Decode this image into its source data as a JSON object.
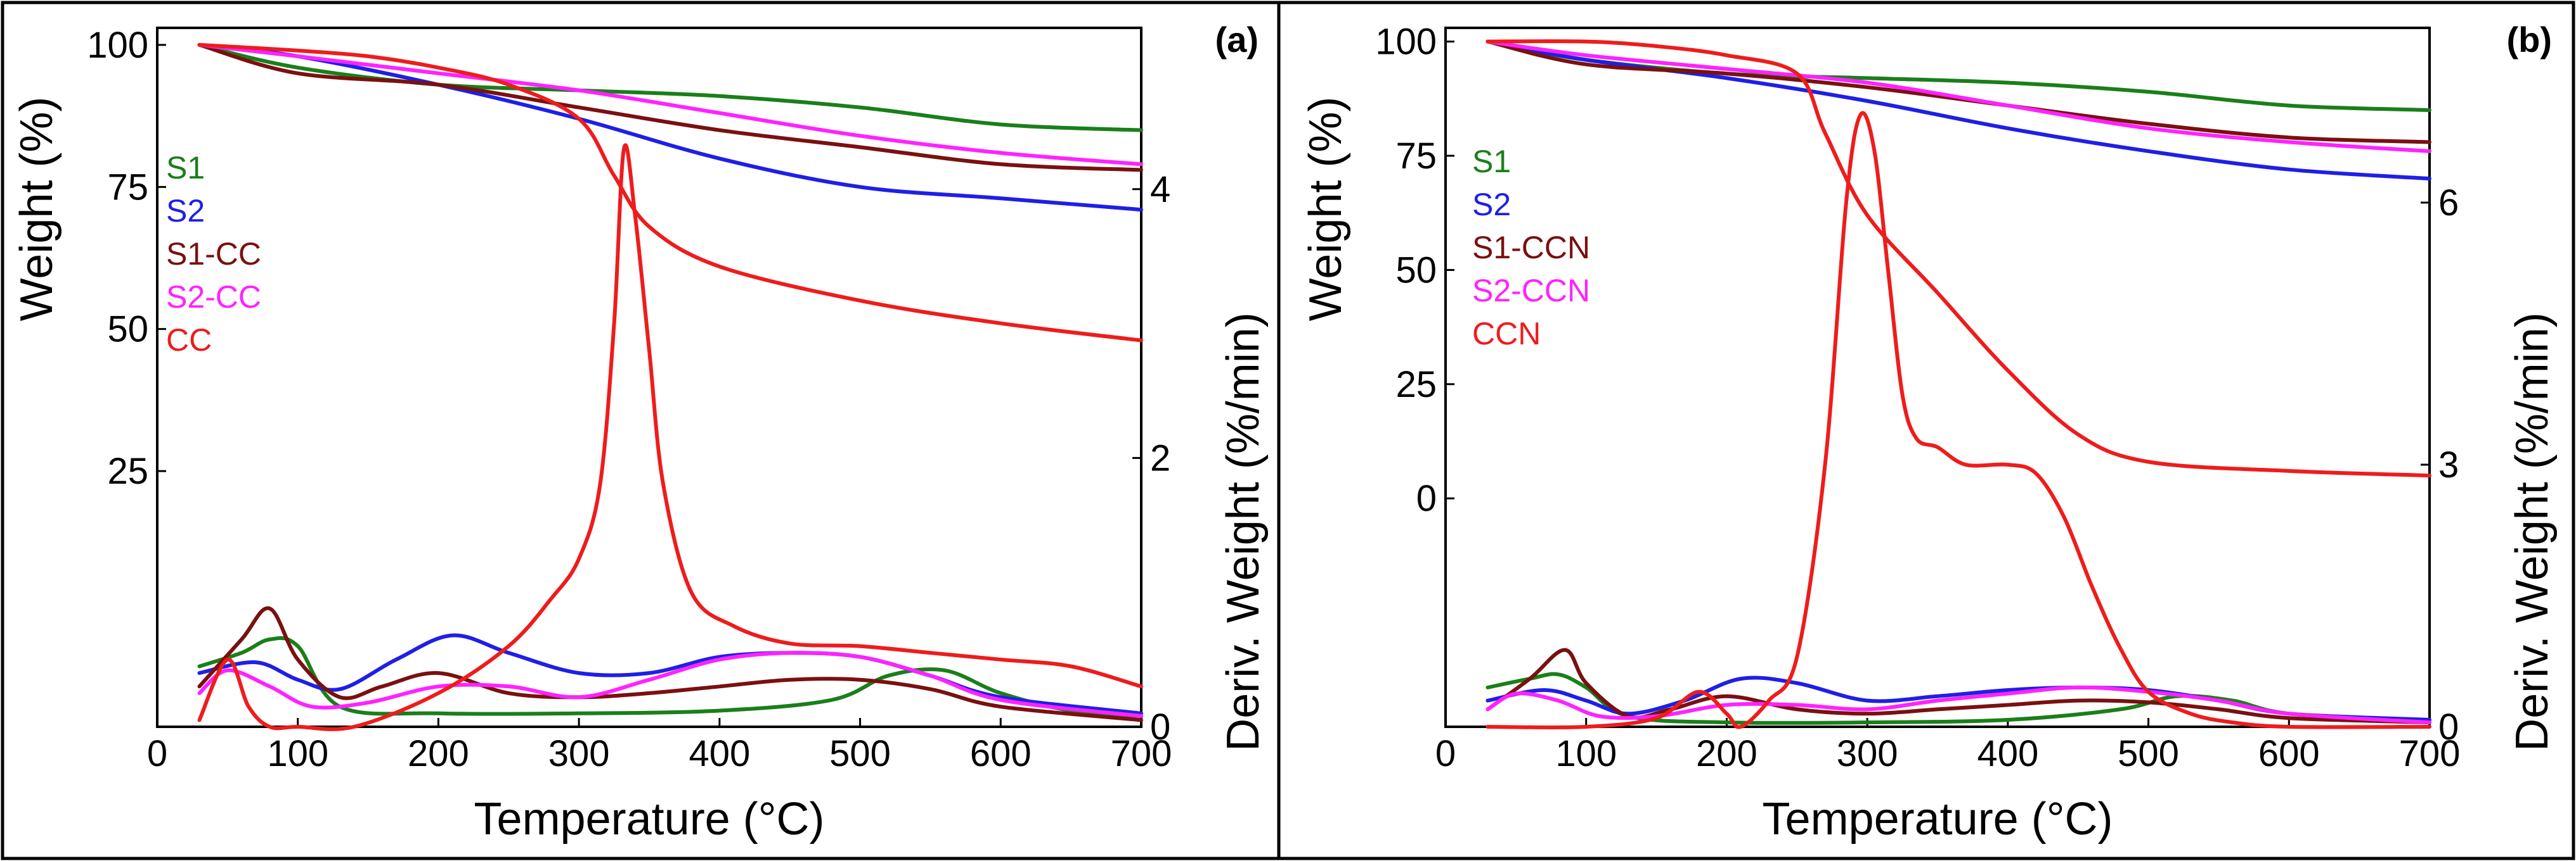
{
  "chart_data": [
    {
      "type": "line",
      "panel_label": "(a)",
      "xlabel": "Temperature (°C)",
      "ylabel_left": "Weight (%)",
      "ylabel_right": "Deriv. Weight (%/min)",
      "xlim": [
        0,
        700
      ],
      "xticks": [
        "0",
        "100",
        "200",
        "300",
        "400",
        "500",
        "600",
        "700"
      ],
      "xtick_values": [
        0,
        100,
        200,
        300,
        400,
        500,
        600,
        700
      ],
      "weight_ylim": [
        -20,
        103
      ],
      "weight_ticks": [
        "25",
        "50",
        "75",
        "100"
      ],
      "weight_tick_values": [
        25,
        50,
        75,
        100
      ],
      "deriv_ylim": [
        0,
        5.2
      ],
      "deriv_ticks": [
        "0",
        "2",
        "4"
      ],
      "deriv_tick_values": [
        0,
        2,
        4
      ],
      "legend": [
        "S1",
        "S2",
        "S1-CC",
        "S2-CC",
        "CC"
      ],
      "series": [
        {
          "name": "S1",
          "color": "#1a7f1a",
          "axis": "weight",
          "x": [
            30,
            100,
            200,
            300,
            400,
            500,
            600,
            700
          ],
          "y": [
            100,
            96,
            93,
            92,
            91,
            89,
            86,
            85
          ]
        },
        {
          "name": "S2",
          "color": "#1f1fe6",
          "axis": "weight",
          "x": [
            30,
            100,
            200,
            300,
            400,
            500,
            600,
            700
          ],
          "y": [
            100,
            98,
            93,
            87,
            80,
            75,
            73,
            71
          ]
        },
        {
          "name": "S1-CC",
          "color": "#7a1010",
          "axis": "weight",
          "x": [
            30,
            100,
            200,
            300,
            400,
            500,
            600,
            700
          ],
          "y": [
            100,
            95,
            93,
            89,
            85,
            82,
            79,
            78
          ]
        },
        {
          "name": "S2-CC",
          "color": "#ff22ff",
          "axis": "weight",
          "x": [
            30,
            100,
            200,
            300,
            400,
            500,
            600,
            700
          ],
          "y": [
            100,
            98,
            95,
            92,
            88,
            84,
            81,
            79
          ]
        },
        {
          "name": "CC",
          "color": "#ee1c1c",
          "axis": "weight",
          "x": [
            30,
            100,
            150,
            200,
            250,
            300,
            325,
            350,
            400,
            500,
            600,
            700
          ],
          "y": [
            100,
            99,
            98,
            96,
            93,
            87,
            77,
            68,
            61,
            55,
            51,
            48
          ]
        },
        {
          "name": "S1",
          "color": "#1a7f1a",
          "axis": "deriv",
          "x": [
            30,
            60,
            80,
            100,
            130,
            200,
            300,
            400,
            480,
            520,
            560,
            600,
            650,
            700
          ],
          "y": [
            0.45,
            0.55,
            0.65,
            0.6,
            0.15,
            0.1,
            0.1,
            0.12,
            0.2,
            0.38,
            0.42,
            0.25,
            0.12,
            0.08
          ]
        },
        {
          "name": "S2",
          "color": "#1f1fe6",
          "axis": "deriv",
          "x": [
            30,
            70,
            100,
            130,
            170,
            210,
            250,
            300,
            350,
            400,
            450,
            500,
            550,
            600,
            700
          ],
          "y": [
            0.4,
            0.48,
            0.35,
            0.28,
            0.5,
            0.68,
            0.55,
            0.4,
            0.4,
            0.52,
            0.55,
            0.52,
            0.38,
            0.22,
            0.1
          ]
        },
        {
          "name": "S1-CC",
          "color": "#7a1010",
          "axis": "deriv",
          "x": [
            30,
            60,
            80,
            100,
            130,
            160,
            200,
            250,
            300,
            350,
            400,
            450,
            500,
            550,
            600,
            700
          ],
          "y": [
            0.3,
            0.65,
            0.88,
            0.5,
            0.22,
            0.3,
            0.4,
            0.25,
            0.22,
            0.25,
            0.3,
            0.35,
            0.35,
            0.28,
            0.15,
            0.05
          ]
        },
        {
          "name": "S2-CC",
          "color": "#ff22ff",
          "axis": "deriv",
          "x": [
            30,
            50,
            80,
            110,
            150,
            200,
            250,
            300,
            350,
            400,
            450,
            500,
            550,
            600,
            700
          ],
          "y": [
            0.25,
            0.42,
            0.3,
            0.15,
            0.18,
            0.3,
            0.3,
            0.22,
            0.35,
            0.5,
            0.55,
            0.52,
            0.38,
            0.2,
            0.08
          ]
        },
        {
          "name": "CC",
          "color": "#ee1c1c",
          "axis": "deriv",
          "x": [
            30,
            50,
            65,
            80,
            100,
            140,
            200,
            250,
            280,
            300,
            315,
            325,
            332,
            340,
            350,
            360,
            380,
            410,
            450,
            500,
            550,
            600,
            650,
            700
          ],
          "y": [
            0.05,
            0.5,
            0.15,
            0.0,
            0.0,
            0.0,
            0.25,
            0.6,
            0.95,
            1.25,
            1.8,
            3.0,
            4.3,
            3.8,
            2.8,
            1.8,
            1.0,
            0.75,
            0.62,
            0.6,
            0.55,
            0.5,
            0.45,
            0.3
          ]
        }
      ]
    },
    {
      "type": "line",
      "panel_label": "(b)",
      "xlabel": "Temperature (°C)",
      "ylabel_left": "Weight (%)",
      "ylabel_right": "Deriv. Weight (%/min)",
      "xlim": [
        0,
        700
      ],
      "xticks": [
        "0",
        "100",
        "200",
        "300",
        "400",
        "500",
        "600",
        "700"
      ],
      "xtick_values": [
        0,
        100,
        200,
        300,
        400,
        500,
        600,
        700
      ],
      "weight_ylim": [
        -50,
        103
      ],
      "weight_ticks": [
        "0",
        "25",
        "50",
        "75",
        "100"
      ],
      "weight_tick_values": [
        0,
        25,
        50,
        75,
        100
      ],
      "deriv_ylim": [
        0,
        8.0
      ],
      "deriv_ticks": [
        "0",
        "3",
        "6"
      ],
      "deriv_tick_values": [
        0,
        3,
        6
      ],
      "legend": [
        "S1",
        "S2",
        "S1-CCN",
        "S2-CCN",
        "CCN"
      ],
      "series": [
        {
          "name": "S1",
          "color": "#1a7f1a",
          "axis": "weight",
          "x": [
            30,
            100,
            200,
            300,
            400,
            500,
            600,
            700
          ],
          "y": [
            100,
            96,
            93,
            92,
            91,
            89,
            86,
            85
          ]
        },
        {
          "name": "S2",
          "color": "#1f1fe6",
          "axis": "weight",
          "x": [
            30,
            100,
            200,
            300,
            400,
            500,
            600,
            700
          ],
          "y": [
            100,
            96,
            92,
            87,
            81,
            76,
            72,
            70
          ]
        },
        {
          "name": "S1-CCN",
          "color": "#7a1010",
          "axis": "weight",
          "x": [
            30,
            100,
            200,
            300,
            400,
            500,
            600,
            700
          ],
          "y": [
            100,
            95,
            93,
            90,
            86,
            82,
            79,
            78
          ]
        },
        {
          "name": "S2-CCN",
          "color": "#ff22ff",
          "axis": "weight",
          "x": [
            30,
            100,
            200,
            300,
            400,
            500,
            600,
            700
          ],
          "y": [
            100,
            97,
            94,
            91,
            86,
            81,
            78,
            76
          ]
        },
        {
          "name": "CCN",
          "color": "#ee1c1c",
          "axis": "weight",
          "x": [
            30,
            100,
            150,
            200,
            250,
            270,
            300,
            350,
            400,
            450,
            500,
            600,
            700
          ],
          "y": [
            100,
            100,
            99,
            97,
            93,
            80,
            62,
            45,
            28,
            14,
            8,
            6,
            5
          ]
        },
        {
          "name": "S1",
          "color": "#1a7f1a",
          "axis": "deriv",
          "x": [
            30,
            60,
            80,
            100,
            130,
            200,
            300,
            400,
            480,
            520,
            560,
            600,
            700
          ],
          "y": [
            0.45,
            0.55,
            0.6,
            0.45,
            0.12,
            0.05,
            0.05,
            0.08,
            0.2,
            0.35,
            0.3,
            0.15,
            0.05
          ]
        },
        {
          "name": "S2",
          "color": "#1f1fe6",
          "axis": "deriv",
          "x": [
            30,
            70,
            100,
            130,
            170,
            210,
            250,
            300,
            350,
            400,
            450,
            500,
            550,
            600,
            700
          ],
          "y": [
            0.3,
            0.42,
            0.3,
            0.15,
            0.3,
            0.55,
            0.5,
            0.3,
            0.35,
            0.42,
            0.45,
            0.42,
            0.3,
            0.15,
            0.08
          ]
        },
        {
          "name": "S1-CCN",
          "color": "#7a1010",
          "axis": "deriv",
          "x": [
            30,
            60,
            85,
            100,
            130,
            160,
            200,
            250,
            300,
            350,
            400,
            450,
            500,
            550,
            600,
            700
          ],
          "y": [
            0.2,
            0.55,
            0.88,
            0.5,
            0.12,
            0.2,
            0.35,
            0.2,
            0.15,
            0.2,
            0.25,
            0.3,
            0.28,
            0.2,
            0.1,
            0.05
          ]
        },
        {
          "name": "S2-CCN",
          "color": "#ff22ff",
          "axis": "deriv",
          "x": [
            30,
            50,
            80,
            110,
            150,
            200,
            250,
            300,
            350,
            400,
            450,
            500,
            550,
            600,
            700
          ],
          "y": [
            0.2,
            0.38,
            0.3,
            0.12,
            0.12,
            0.25,
            0.25,
            0.2,
            0.3,
            0.38,
            0.45,
            0.4,
            0.3,
            0.15,
            0.05
          ]
        },
        {
          "name": "CCN",
          "color": "#ee1c1c",
          "axis": "deriv",
          "x": [
            30,
            100,
            150,
            180,
            200,
            210,
            230,
            250,
            270,
            285,
            295,
            305,
            315,
            325,
            335,
            350,
            370,
            400,
            420,
            440,
            460,
            480,
            500,
            530,
            560,
            600,
            700
          ],
          "y": [
            0.0,
            0.0,
            0.1,
            0.4,
            0.15,
            0.0,
            0.3,
            0.8,
            3.0,
            6.0,
            7.0,
            6.6,
            5.2,
            3.8,
            3.3,
            3.2,
            3.0,
            3.0,
            2.9,
            2.4,
            1.6,
            0.9,
            0.4,
            0.15,
            0.05,
            0.0,
            0.0
          ]
        }
      ]
    }
  ]
}
